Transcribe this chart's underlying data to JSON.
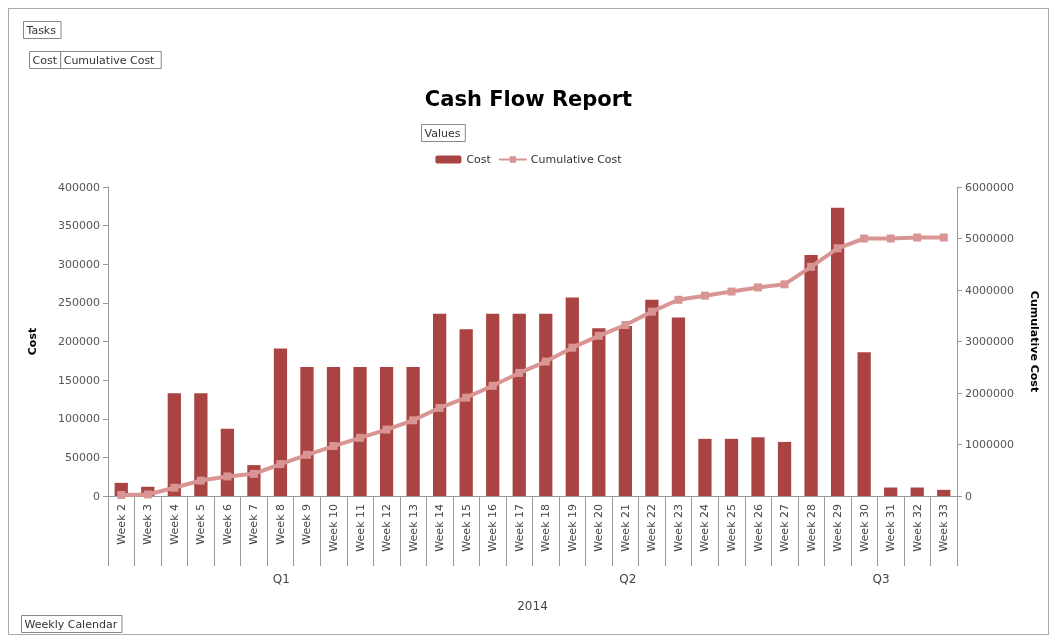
{
  "chart_data": {
    "type": "bar",
    "title": "Cash Flow Report",
    "legend_title": "Values",
    "ylabel": "Cost",
    "y2label": "Cumulative Cost",
    "xlabel": "2014",
    "categories": [
      "Week 2",
      "Week 3",
      "Week 4",
      "Week 5",
      "Week 6",
      "Week 7",
      "Week 8",
      "Week 9",
      "Week 10",
      "Week 11",
      "Week 12",
      "Week 13",
      "Week 14",
      "Week 15",
      "Week 16",
      "Week 17",
      "Week 18",
      "Week 19",
      "Week 20",
      "Week 21",
      "Week 22",
      "Week 23",
      "Week 24",
      "Week 25",
      "Week 26",
      "Week 27",
      "Week 28",
      "Week 29",
      "Week 30",
      "Week 31",
      "Week 32",
      "Week 33"
    ],
    "series": [
      {
        "name": "Cost",
        "color": "#a94442",
        "values": [
          17000,
          12000,
          133000,
          133000,
          87000,
          40000,
          191000,
          167000,
          167000,
          167000,
          167000,
          167000,
          236000,
          216000,
          236000,
          236000,
          236000,
          257000,
          217000,
          220000,
          254000,
          231000,
          74000,
          74000,
          76000,
          70000,
          312000,
          373000,
          186000,
          11000,
          11000,
          8000
        ]
      },
      {
        "name": "Cumulative Cost",
        "type": "line",
        "axis": "y2",
        "color": "#d99594",
        "marker": "square",
        "values": [
          20000,
          30000,
          160000,
          300000,
          380000,
          430000,
          620000,
          800000,
          970000,
          1130000,
          1290000,
          1470000,
          1710000,
          1910000,
          2140000,
          2390000,
          2610000,
          2880000,
          3110000,
          3320000,
          3580000,
          3810000,
          3890000,
          3970000,
          4050000,
          4110000,
          4450000,
          4810000,
          5000000,
          5000000,
          5020000,
          5020000
        ]
      }
    ],
    "ylim": [
      0,
      400000
    ],
    "yticks": [
      0,
      50000,
      100000,
      150000,
      200000,
      250000,
      300000,
      350000,
      400000
    ],
    "y2lim": [
      0,
      6000000
    ],
    "y2ticks": [
      0,
      1000000,
      2000000,
      3000000,
      4000000,
      5000000,
      6000000
    ],
    "grid": false,
    "legend": "top",
    "annotations": [
      "Tasks",
      "Cost",
      "Cumulative Cost",
      "Weekly Calendar",
      "Q1",
      "Q2",
      "Q3"
    ]
  }
}
